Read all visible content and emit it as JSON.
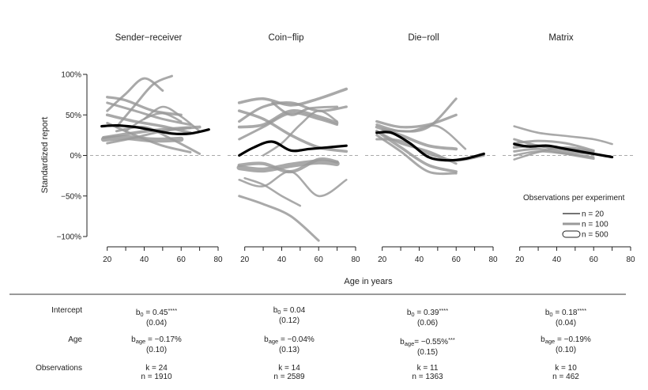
{
  "chart_data": {
    "type": "line",
    "ylabel": "Standardized report",
    "xlabel": "Age in years",
    "ylim": [
      -1.0,
      1.0
    ],
    "xlim": [
      15,
      80
    ],
    "y_ticks": [
      {
        "value": 1.0,
        "label": "100%"
      },
      {
        "value": 0.5,
        "label": "50%"
      },
      {
        "value": 0.0,
        "label": "0%"
      },
      {
        "value": -0.5,
        "label": "−50%"
      },
      {
        "value": -1.0,
        "label": "−100%"
      }
    ],
    "x_ticks": [
      {
        "value": 20,
        "label": "20"
      },
      {
        "value": 40,
        "label": "40"
      },
      {
        "value": 60,
        "label": "60"
      },
      {
        "value": 80,
        "label": "80"
      }
    ],
    "legend": {
      "title": "Observations per experiment",
      "placement": "right",
      "entries": [
        {
          "label": "n = 20",
          "size": 20
        },
        {
          "label": "n = 100",
          "size": 100
        },
        {
          "label": "n = 500",
          "size": 500
        }
      ]
    },
    "panels": [
      {
        "title": "Sender−receiver",
        "overall": {
          "x": [
            17,
            25,
            35,
            45,
            55,
            65,
            75
          ],
          "y": [
            0.36,
            0.37,
            0.35,
            0.31,
            0.27,
            0.27,
            0.32
          ]
        },
        "experiments": [
          {
            "n": 60,
            "x": [
              25,
              35,
              45,
              55
            ],
            "y": [
              0.35,
              0.62,
              0.88,
              0.98
            ]
          },
          {
            "n": 60,
            "x": [
              20,
              30,
              40,
              50
            ],
            "y": [
              0.55,
              0.76,
              0.95,
              0.8
            ]
          },
          {
            "n": 80,
            "x": [
              20,
              30,
              45,
              60
            ],
            "y": [
              0.72,
              0.68,
              0.55,
              0.5
            ]
          },
          {
            "n": 60,
            "x": [
              20,
              35,
              50,
              65
            ],
            "y": [
              0.65,
              0.55,
              0.45,
              0.38
            ]
          },
          {
            "n": 100,
            "x": [
              20,
              35,
              50,
              65
            ],
            "y": [
              0.5,
              0.42,
              0.36,
              0.28
            ]
          },
          {
            "n": 120,
            "x": [
              18,
              35,
              50,
              70
            ],
            "y": [
              0.22,
              0.28,
              0.32,
              0.35
            ]
          },
          {
            "n": 400,
            "x": [
              18,
              30,
              45,
              60
            ],
            "y": [
              0.2,
              0.22,
              0.19,
              0.2
            ]
          },
          {
            "n": 60,
            "x": [
              20,
              35,
              50,
              65
            ],
            "y": [
              0.15,
              0.22,
              0.3,
              0.34
            ]
          },
          {
            "n": 60,
            "x": [
              20,
              35,
              50,
              65
            ],
            "y": [
              0.4,
              0.25,
              0.12,
              0.04
            ]
          },
          {
            "n": 60,
            "x": [
              25,
              40,
              55,
              70
            ],
            "y": [
              0.3,
              0.35,
              0.2,
              0.02
            ]
          },
          {
            "n": 40,
            "x": [
              40,
              50,
              60,
              70
            ],
            "y": [
              0.45,
              0.6,
              0.48,
              0.3
            ]
          },
          {
            "n": 40,
            "x": [
              30,
              40,
              50,
              60
            ],
            "y": [
              0.3,
              0.45,
              0.52,
              0.42
            ]
          }
        ]
      },
      {
        "title": "Coin−flip",
        "overall": {
          "x": [
            17,
            25,
            35,
            45,
            55,
            65,
            75
          ],
          "y": [
            0.0,
            0.1,
            0.17,
            0.06,
            0.08,
            0.1,
            0.12
          ]
        },
        "experiments": [
          {
            "n": 100,
            "x": [
              17,
              30,
              45,
              60,
              75
            ],
            "y": [
              0.65,
              0.7,
              0.62,
              0.7,
              0.82
            ]
          },
          {
            "n": 80,
            "x": [
              17,
              30,
              45,
              60,
              75
            ],
            "y": [
              0.42,
              0.6,
              0.65,
              0.55,
              0.6
            ]
          },
          {
            "n": 100,
            "x": [
              17,
              30,
              45,
              60,
              70
            ],
            "y": [
              0.35,
              0.38,
              0.55,
              0.48,
              0.4
            ]
          },
          {
            "n": 400,
            "x": [
              17,
              30,
              45,
              60,
              70
            ],
            "y": [
              -0.15,
              -0.18,
              -0.12,
              -0.08,
              -0.1
            ]
          },
          {
            "n": 150,
            "x": [
              17,
              30,
              45,
              60,
              70
            ],
            "y": [
              -0.12,
              -0.1,
              -0.2,
              -0.05,
              -0.08
            ]
          },
          {
            "n": 100,
            "x": [
              17,
              30,
              45,
              60,
              75
            ],
            "y": [
              0.55,
              0.45,
              0.25,
              0.1,
              0.05
            ]
          },
          {
            "n": 60,
            "x": [
              17,
              30,
              45,
              60
            ],
            "y": [
              -0.5,
              -0.6,
              -0.75,
              -1.05
            ]
          },
          {
            "n": 60,
            "x": [
              17,
              30,
              45,
              60,
              70
            ],
            "y": [
              0.2,
              0.35,
              0.52,
              0.45,
              0.38
            ]
          },
          {
            "n": 40,
            "x": [
              17,
              30,
              45,
              60,
              75
            ],
            "y": [
              -0.3,
              -0.38,
              -0.2,
              -0.5,
              -0.3
            ]
          },
          {
            "n": 40,
            "x": [
              30,
              40,
              50,
              60,
              70
            ],
            "y": [
              0.0,
              0.15,
              0.38,
              0.55,
              0.42
            ]
          },
          {
            "n": 40,
            "x": [
              20,
              30,
              40,
              50
            ],
            "y": [
              -0.28,
              -0.36,
              -0.5,
              -0.62
            ]
          },
          {
            "n": 60,
            "x": [
              35,
              45,
              55,
              70
            ],
            "y": [
              0.65,
              0.5,
              0.58,
              0.6
            ]
          }
        ]
      },
      {
        "title": "Die−roll",
        "overall": {
          "x": [
            17,
            25,
            35,
            45,
            55,
            65,
            75
          ],
          "y": [
            0.28,
            0.28,
            0.15,
            -0.02,
            -0.06,
            -0.04,
            0.02
          ]
        },
        "experiments": [
          {
            "n": 80,
            "x": [
              17,
              30,
              45,
              60
            ],
            "y": [
              0.42,
              0.35,
              0.38,
              0.5
            ]
          },
          {
            "n": 60,
            "x": [
              17,
              30,
              45,
              60
            ],
            "y": [
              0.38,
              0.3,
              0.35,
              0.7
            ]
          },
          {
            "n": 120,
            "x": [
              17,
              30,
              45,
              60
            ],
            "y": [
              0.35,
              0.25,
              0.12,
              0.08
            ]
          },
          {
            "n": 100,
            "x": [
              17,
              30,
              45,
              60
            ],
            "y": [
              0.3,
              0.1,
              -0.12,
              -0.2
            ]
          },
          {
            "n": 60,
            "x": [
              17,
              30,
              45,
              60
            ],
            "y": [
              0.3,
              0.15,
              0.05,
              -0.1
            ]
          },
          {
            "n": 60,
            "x": [
              17,
              30,
              45,
              60,
              75
            ],
            "y": [
              0.2,
              0.18,
              0.02,
              -0.06,
              0.0
            ]
          },
          {
            "n": 60,
            "x": [
              17,
              30,
              45,
              60
            ],
            "y": [
              0.25,
              0.05,
              -0.2,
              -0.22
            ]
          },
          {
            "n": 40,
            "x": [
              20,
              35,
              50,
              65
            ],
            "y": [
              0.32,
              0.3,
              0.36,
              0.08
            ]
          }
        ]
      },
      {
        "title": "Matrix",
        "overall": {
          "x": [
            17,
            25,
            35,
            45,
            55,
            65,
            70
          ],
          "y": [
            0.14,
            0.11,
            0.12,
            0.08,
            0.04,
            0.0,
            -0.02
          ]
        },
        "experiments": [
          {
            "n": 40,
            "x": [
              17,
              30,
              45,
              60,
              70
            ],
            "y": [
              0.36,
              0.28,
              0.24,
              0.2,
              0.14
            ]
          },
          {
            "n": 60,
            "x": [
              17,
              30,
              45,
              60
            ],
            "y": [
              0.2,
              0.12,
              0.08,
              0.05
            ]
          },
          {
            "n": 100,
            "x": [
              17,
              30,
              45,
              60
            ],
            "y": [
              0.1,
              0.12,
              0.05,
              0.02
            ]
          },
          {
            "n": 60,
            "x": [
              17,
              30,
              45,
              60
            ],
            "y": [
              0.05,
              0.08,
              0.02,
              -0.04
            ]
          },
          {
            "n": 40,
            "x": [
              17,
              30,
              45,
              60
            ],
            "y": [
              -0.05,
              0.04,
              0.1,
              0.05
            ]
          },
          {
            "n": 60,
            "x": [
              17,
              30,
              45,
              60
            ],
            "y": [
              0.15,
              0.18,
              0.15,
              0.06
            ]
          },
          {
            "n": 40,
            "x": [
              17,
              30,
              45,
              60
            ],
            "y": [
              0.0,
              0.05,
              0.02,
              -0.02
            ]
          }
        ]
      }
    ]
  },
  "stats": {
    "rows": [
      {
        "label": "Intercept"
      },
      {
        "label": "Age"
      },
      {
        "label": "Observations"
      }
    ],
    "panels": [
      {
        "intercept": {
          "prefix": "b",
          "sub": "0",
          "value": " = 0.45",
          "stars": "****",
          "se": "(0.04)"
        },
        "age": {
          "prefix": "b",
          "sub": "age",
          "value": " = −0.17%",
          "stars": "",
          "se": "(0.10)"
        },
        "obs": {
          "k": "k = 24",
          "n": "n = 1910"
        }
      },
      {
        "intercept": {
          "prefix": "b",
          "sub": "0",
          "value": " = 0.04",
          "stars": "",
          "se": "(0.12)"
        },
        "age": {
          "prefix": "b",
          "sub": "age",
          "value": " = −0.04%",
          "stars": "",
          "se": "(0.13)"
        },
        "obs": {
          "k": "k = 14",
          "n": "n = 2589"
        }
      },
      {
        "intercept": {
          "prefix": "b",
          "sub": "0",
          "value": " = 0.39",
          "stars": "****",
          "se": "(0.06)"
        },
        "age": {
          "prefix": "b",
          "sub": "age",
          "value": "= −0.55%",
          "stars": "***",
          "se": "(0.15)"
        },
        "obs": {
          "k": "k = 11",
          "n": "n = 1363"
        }
      },
      {
        "intercept": {
          "prefix": "b",
          "sub": "0",
          "value": " = 0.18",
          "stars": "****",
          "se": "(0.04)"
        },
        "age": {
          "prefix": "b",
          "sub": "age",
          "value": " = −0.19%",
          "stars": "",
          "se": "(0.10)"
        },
        "obs": {
          "k": "k = 10",
          "n": "n = 462"
        }
      }
    ]
  },
  "colors": {
    "experiment_line": "#9a9a9a",
    "overall_line": "#000000",
    "zero_line": "#aaaaaa",
    "axis": "#222222"
  }
}
